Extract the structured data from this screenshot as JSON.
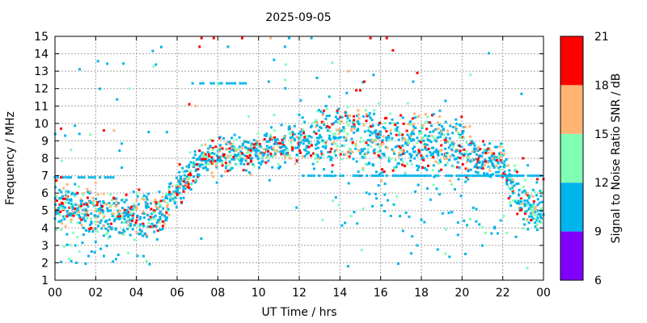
{
  "chart_data": {
    "type": "scatter",
    "title": "2025-09-05",
    "xlabel": "UT Time / hrs",
    "ylabel": "Frequency / MHz",
    "xlim": [
      0,
      24
    ],
    "ylim": [
      1,
      15
    ],
    "x_ticks": [
      "00",
      "02",
      "04",
      "06",
      "08",
      "10",
      "12",
      "14",
      "16",
      "18",
      "20",
      "22",
      "00"
    ],
    "y_ticks": [
      "1",
      "2",
      "3",
      "4",
      "5",
      "6",
      "7",
      "8",
      "9",
      "10",
      "11",
      "12",
      "13",
      "14",
      "15"
    ],
    "grid": true,
    "colorbar": {
      "label": "Signal to Noise Ratio SNR / dB",
      "range": [
        6,
        21
      ],
      "ticks": [
        "6",
        "9",
        "12",
        "15",
        "18",
        "21"
      ],
      "bands": [
        {
          "from": 6,
          "to": 9,
          "color": "#8000ff"
        },
        {
          "from": 9,
          "to": 12,
          "color": "#00b4ec"
        },
        {
          "from": 12,
          "to": 15,
          "color": "#80ffb4"
        },
        {
          "from": 15,
          "to": 18,
          "color": "#ffb472"
        },
        {
          "from": 18,
          "to": 21,
          "color": "#ff0000"
        }
      ]
    },
    "band_ridge": [
      [
        0,
        5.2
      ],
      [
        1,
        5.1
      ],
      [
        2,
        5.0
      ],
      [
        3,
        4.8
      ],
      [
        4,
        4.6
      ],
      [
        5,
        4.8
      ],
      [
        5.5,
        5.3
      ],
      [
        6,
        6.3
      ],
      [
        6.5,
        7.0
      ],
      [
        7,
        7.6
      ],
      [
        7.5,
        7.9
      ],
      [
        8,
        8.2
      ],
      [
        9,
        8.3
      ],
      [
        10,
        8.5
      ],
      [
        11,
        8.6
      ],
      [
        12,
        8.8
      ],
      [
        13,
        9.4
      ],
      [
        14,
        9.3
      ],
      [
        15,
        9.0
      ],
      [
        16,
        8.9
      ],
      [
        17,
        8.9
      ],
      [
        18,
        8.8
      ],
      [
        19,
        8.9
      ],
      [
        20,
        8.7
      ],
      [
        20.5,
        8.2
      ],
      [
        21,
        7.9
      ],
      [
        22,
        7.8
      ],
      [
        22.5,
        6.5
      ],
      [
        23,
        5.3
      ],
      [
        23.5,
        5.0
      ],
      [
        24,
        4.8
      ]
    ],
    "points": [
      {
        "x": 0.3,
        "y": 9.7,
        "snr": 19
      },
      {
        "x": 0.5,
        "y": 9.3,
        "snr": 10
      },
      {
        "x": 1.2,
        "y": 9.4,
        "snr": 11
      },
      {
        "x": 2.4,
        "y": 9.6,
        "snr": 19
      },
      {
        "x": 2.9,
        "y": 9.6,
        "snr": 16
      },
      {
        "x": 4.6,
        "y": 9.5,
        "snr": 10
      },
      {
        "x": 5.5,
        "y": 9.5,
        "snr": 11
      },
      {
        "x": 7.2,
        "y": 14.9,
        "snr": 19
      },
      {
        "x": 7.8,
        "y": 14.9,
        "snr": 20
      },
      {
        "x": 9.2,
        "y": 14.9,
        "snr": 19
      },
      {
        "x": 10.6,
        "y": 14.9,
        "snr": 17
      },
      {
        "x": 11.5,
        "y": 14.9,
        "snr": 10
      },
      {
        "x": 12.6,
        "y": 14.9,
        "snr": 11
      },
      {
        "x": 15.5,
        "y": 14.9,
        "snr": 19
      },
      {
        "x": 16.3,
        "y": 14.9,
        "snr": 20
      },
      {
        "x": 7.1,
        "y": 14.4,
        "snr": 19
      },
      {
        "x": 8.5,
        "y": 14.4,
        "snr": 11
      },
      {
        "x": 11.3,
        "y": 14.4,
        "snr": 10
      },
      {
        "x": 16.6,
        "y": 14.2,
        "snr": 19
      },
      {
        "x": 14.4,
        "y": 13.0,
        "snr": 17
      },
      {
        "x": 17.8,
        "y": 12.9,
        "snr": 19
      },
      {
        "x": 15.2,
        "y": 12.4,
        "snr": 20
      },
      {
        "x": 17.6,
        "y": 12.4,
        "snr": 11
      },
      {
        "x": 10.5,
        "y": 12.4,
        "snr": 10
      },
      {
        "x": 6.6,
        "y": 11.1,
        "snr": 19
      },
      {
        "x": 6.9,
        "y": 11.0,
        "snr": 17
      },
      {
        "x": 14.8,
        "y": 11.9,
        "snr": 19
      },
      {
        "x": 15.0,
        "y": 11.9,
        "snr": 20
      },
      {
        "x": 8.0,
        "y": 12.3,
        "snr": 13
      },
      {
        "x": 12.0,
        "y": 10.5,
        "snr": 11
      },
      {
        "x": 0.3,
        "y": 6.9,
        "snr": 19
      },
      {
        "x": 0.6,
        "y": 6.5,
        "snr": 16
      },
      {
        "x": 1.1,
        "y": 6.0,
        "snr": 19
      },
      {
        "x": 2.0,
        "y": 6.6,
        "snr": 17
      },
      {
        "x": 3.5,
        "y": 5.9,
        "snr": 19
      },
      {
        "x": 1.0,
        "y": 3.0,
        "snr": 10
      },
      {
        "x": 2.0,
        "y": 3.2,
        "snr": 11
      },
      {
        "x": 4.5,
        "y": 3.5,
        "snr": 10
      },
      {
        "x": 0.8,
        "y": 2.1,
        "snr": 11
      },
      {
        "x": 22.3,
        "y": 5.7,
        "snr": 19
      },
      {
        "x": 23.2,
        "y": 4.5,
        "snr": 17
      },
      {
        "x": 23.7,
        "y": 6.8,
        "snr": 19
      },
      {
        "x": 24.0,
        "y": 6.8,
        "snr": 20
      },
      {
        "x": 23.0,
        "y": 8.0,
        "snr": 19
      },
      {
        "x": 21.5,
        "y": 8.0,
        "snr": 17
      },
      {
        "x": 17.8,
        "y": 3.0,
        "snr": 10
      },
      {
        "x": 19.8,
        "y": 3.6,
        "snr": 11
      },
      {
        "x": 14.4,
        "y": 1.8,
        "snr": 10
      },
      {
        "x": 23.2,
        "y": 1.7,
        "snr": 13
      }
    ]
  }
}
